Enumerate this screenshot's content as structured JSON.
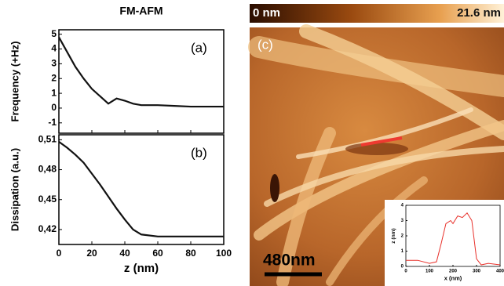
{
  "chart_data": [
    {
      "type": "line",
      "title": "FM-AFM",
      "label": "(a)",
      "ylabel": "Frequency (+Hz)",
      "color": "#111111",
      "x": [
        0,
        5,
        10,
        15,
        20,
        25,
        30,
        35,
        40,
        45,
        50,
        60,
        70,
        80,
        90,
        100
      ],
      "values": [
        4.8,
        3.8,
        2.8,
        2.0,
        1.3,
        0.8,
        0.3,
        0.65,
        0.5,
        0.3,
        0.2,
        0.2,
        0.15,
        0.1,
        0.1,
        0.1
      ],
      "xlim": [
        0,
        100
      ],
      "xticks": [
        0,
        20,
        40,
        60,
        80,
        100
      ],
      "ylim": [
        -1.7,
        5.3
      ],
      "yticks": [
        -1,
        0,
        1,
        2,
        3,
        4,
        5
      ]
    },
    {
      "type": "line",
      "label": "(b)",
      "ylabel": "Dissipation (a.u.)",
      "xlabel": "z (nm)",
      "color": "#111111",
      "x": [
        0,
        5,
        10,
        15,
        20,
        25,
        30,
        35,
        40,
        45,
        50,
        60,
        70,
        80,
        90,
        100
      ],
      "values": [
        0.508,
        0.502,
        0.495,
        0.487,
        0.476,
        0.465,
        0.453,
        0.441,
        0.43,
        0.42,
        0.415,
        0.413,
        0.413,
        0.413,
        0.413,
        0.413
      ],
      "xlim": [
        0,
        100
      ],
      "xticks": [
        0,
        20,
        40,
        60,
        80,
        100
      ],
      "ylim": [
        0.405,
        0.515
      ],
      "yticks": [
        {
          "value": 0.51,
          "label": "0,51"
        },
        {
          "value": 0.48,
          "label": "0,48"
        },
        {
          "value": 0.45,
          "label": "0,45"
        },
        {
          "value": 0.42,
          "label": "0,42"
        }
      ]
    },
    {
      "type": "line",
      "xlabel": "x (nm)",
      "ylabel": "z (nm)",
      "color": "#e8302a",
      "x": [
        0,
        50,
        100,
        130,
        150,
        170,
        190,
        200,
        220,
        240,
        260,
        280,
        300,
        320,
        350,
        400
      ],
      "values": [
        0.4,
        0.4,
        0.2,
        0.3,
        1.5,
        2.8,
        3.0,
        2.8,
        3.3,
        3.2,
        3.5,
        3.0,
        0.5,
        0.1,
        0.2,
        0.1
      ],
      "xlim": [
        0,
        400
      ],
      "xticks": [
        0,
        100,
        200,
        300,
        400
      ],
      "ylim": [
        0,
        4
      ],
      "yticks": [
        0,
        1,
        2,
        3,
        4
      ]
    }
  ],
  "image": {
    "colorbar_min": "0 nm",
    "colorbar_max": "21.6 nm",
    "label": "(c)",
    "scale_bar": "480nm"
  }
}
